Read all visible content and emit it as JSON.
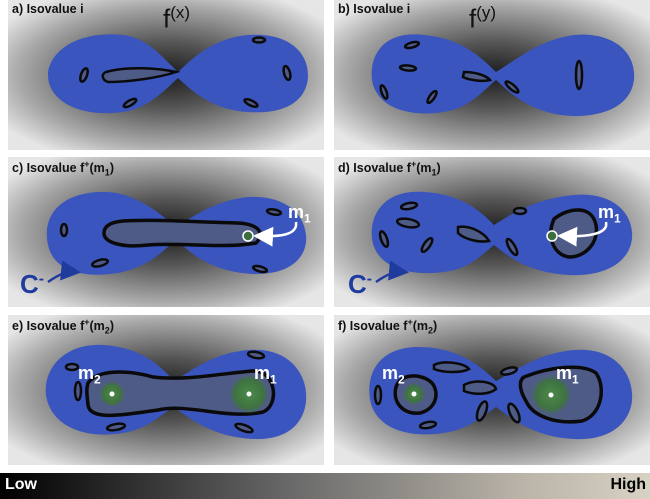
{
  "panels": {
    "a": {
      "label": "a) Isovalue i",
      "func": "f",
      "func_sup": "(x)"
    },
    "b": {
      "label": "b) Isovalue i",
      "func": "f",
      "func_sup": "(y)"
    },
    "c": {
      "label_pre": "c) Isovalue f",
      "label_sup": "+",
      "label_mid": "(m",
      "label_sub": "1",
      "label_post": ")",
      "marker": "m",
      "marker_sub": "1",
      "region": "C",
      "region_sup": "-"
    },
    "d": {
      "label_pre": "d) Isovalue f",
      "label_sup": "+",
      "label_mid": "(m",
      "label_sub": "1",
      "label_post": ")",
      "marker": "m",
      "marker_sub": "1",
      "region": "C",
      "region_sup": "-"
    },
    "e": {
      "label_pre": "e) Isovalue f",
      "label_sup": "+",
      "label_mid": "(m",
      "label_sub": "2",
      "label_post": ")",
      "marker_a": "m",
      "marker_a_sub": "2",
      "marker_b": "m",
      "marker_b_sub": "1"
    },
    "f": {
      "label_pre": "f) Isovalue f",
      "label_sup": "+",
      "label_mid": "(m",
      "label_sub": "2",
      "label_post": ")",
      "marker_a": "m",
      "marker_a_sub": "2",
      "marker_b": "m",
      "marker_b_sub": "1"
    }
  },
  "colorbar": {
    "low": "Low",
    "high": "High"
  },
  "colors": {
    "blob": "#3a55bd",
    "outline": "#0a0a0a",
    "lake": "#4f5b87",
    "green": "#3d6e3e",
    "arrow_text": "#1f3b9e"
  }
}
